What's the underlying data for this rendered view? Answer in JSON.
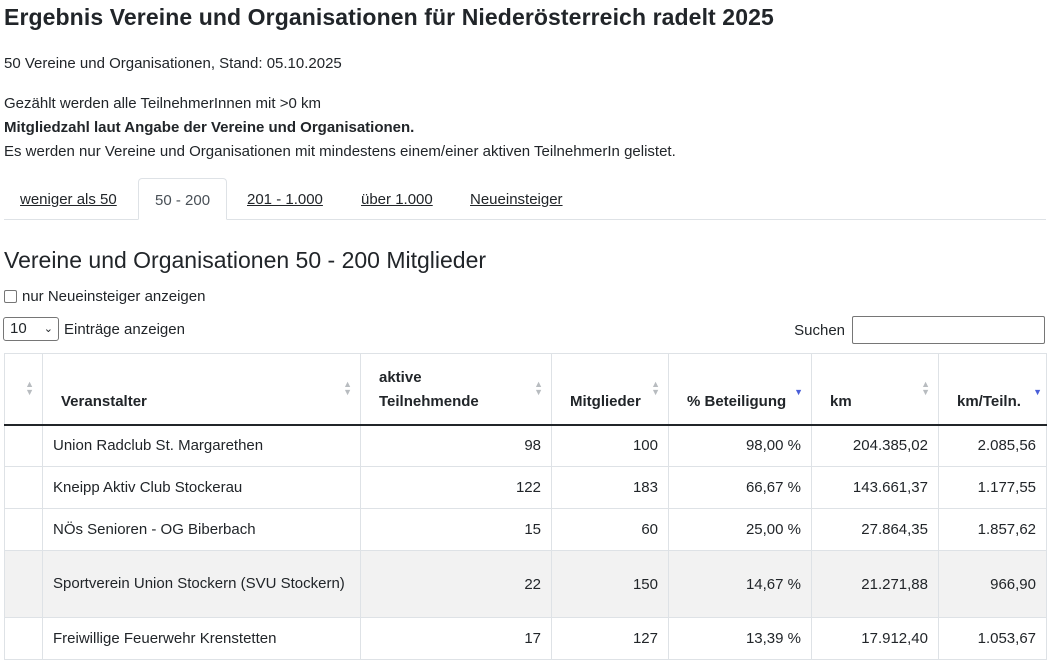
{
  "title": "Ergebnis Vereine und Organisationen für Niederösterreich radelt 2025",
  "subtitle": "50 Vereine und Organisationen, Stand: 05.10.2025",
  "info": {
    "line1": "Gezählt werden alle TeilnehmerInnen mit >0 km",
    "line2": "Mitgliedzahl laut Angabe der Vereine und Organisationen.",
    "line3": "Es werden nur Vereine und Organisationen mit mindestens einem/einer aktiven TeilnehmerIn gelistet."
  },
  "tabs": [
    {
      "label": "weniger als 50",
      "active": false
    },
    {
      "label": "50 - 200",
      "active": true
    },
    {
      "label": "201 - 1.000",
      "active": false
    },
    {
      "label": "über 1.000",
      "active": false
    },
    {
      "label": "Neueinsteiger",
      "active": false
    }
  ],
  "section_title": "Vereine und Organisationen 50 - 200 Mitglieder",
  "filter": {
    "checkbox_label": "nur Neueinsteiger anzeigen",
    "checked": false
  },
  "length": {
    "value": "10",
    "label": "Einträge anzeigen"
  },
  "search": {
    "label": "Suchen",
    "value": ""
  },
  "table": {
    "columns": [
      "",
      "Veranstalter",
      "aktive Teilnehmende",
      "Mitglieder",
      "% Beteiligung",
      "km",
      "km/Teiln."
    ],
    "sorted_column": "% Beteiligung",
    "sort_direction": "desc",
    "rows": [
      {
        "name": "Union Radclub St. Margarethen",
        "aktiv": "98",
        "mitglieder": "100",
        "beteiligung": "98,00 %",
        "km": "204.385,02",
        "km_teiln": "2.085,56"
      },
      {
        "name": "Kneipp Aktiv Club Stockerau",
        "aktiv": "122",
        "mitglieder": "183",
        "beteiligung": "66,67 %",
        "km": "143.661,37",
        "km_teiln": "1.177,55"
      },
      {
        "name": "NÖs Senioren - OG Biberbach",
        "aktiv": "15",
        "mitglieder": "60",
        "beteiligung": "25,00 %",
        "km": "27.864,35",
        "km_teiln": "1.857,62"
      },
      {
        "name": "Sportverein Union Stockern (SVU Stockern)",
        "aktiv": "22",
        "mitglieder": "150",
        "beteiligung": "14,67 %",
        "km": "21.271,88",
        "km_teiln": "966,90"
      },
      {
        "name": "Freiwillige Feuerwehr Krenstetten",
        "aktiv": "17",
        "mitglieder": "127",
        "beteiligung": "13,39 %",
        "km": "17.912,40",
        "km_teiln": "1.053,67"
      }
    ]
  }
}
